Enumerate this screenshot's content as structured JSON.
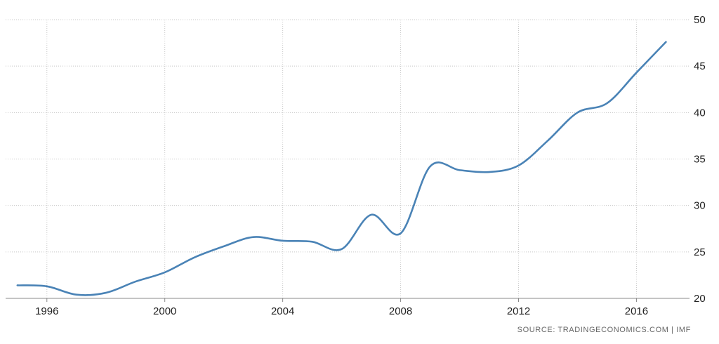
{
  "chart_data": {
    "type": "line",
    "title": "",
    "xlabel": "",
    "ylabel": "",
    "x": [
      1995,
      1996,
      1997,
      1998,
      1999,
      2000,
      2001,
      2002,
      2003,
      2004,
      2005,
      2006,
      2007,
      2008,
      2009,
      2010,
      2011,
      2012,
      2013,
      2014,
      2015,
      2016,
      2017
    ],
    "series": [
      {
        "values": [
          21.4,
          21.3,
          20.4,
          20.6,
          21.8,
          22.8,
          24.4,
          25.6,
          26.6,
          26.2,
          26.1,
          25.3,
          29.0,
          27.0,
          34.2,
          33.8,
          33.6,
          34.3,
          37.0,
          40.0,
          41.0,
          44.3,
          47.6
        ],
        "color": "#4a83b6"
      }
    ],
    "xlim": [
      1994.6,
      2017.8
    ],
    "ylim": [
      20,
      50
    ],
    "x_ticks": [
      "1996",
      "2000",
      "2004",
      "2008",
      "2012",
      "2016"
    ],
    "y_ticks": [
      "20",
      "25",
      "30",
      "35",
      "40",
      "45",
      "50"
    ],
    "grid": true,
    "grid_style": "dotted",
    "y_axis_side": "right",
    "legend": "none"
  },
  "source": "SOURCE: TRADINGECONOMICS.COM | IMF"
}
